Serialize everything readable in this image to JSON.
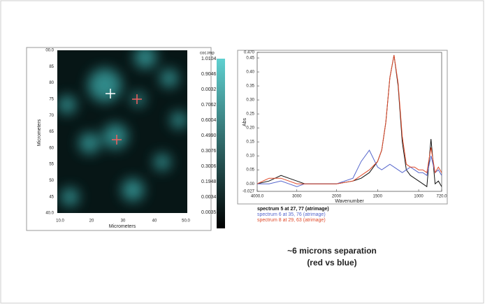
{
  "map": {
    "y_axis_label": "Micrometers",
    "x_axis_label": "Micrometers",
    "x_labels": [
      "10.0",
      "20",
      "30",
      "40",
      "50.0"
    ],
    "y_labels": [
      "00.0",
      "85",
      "80",
      "75",
      "70",
      "65",
      "60",
      "55",
      "50",
      "45",
      "40.0"
    ],
    "colorbar_title": "coc.imp",
    "colorbar_labels": [
      "1.0104",
      "0.9046",
      "0.0032",
      "0.7062",
      "0.6004",
      "0.4990",
      "0.3076",
      "0.3006",
      "0.1948",
      "0.0034",
      "0.0035"
    ]
  },
  "chart_data": {
    "type": "line",
    "x_label": "Wavenumber",
    "y_label": "Abs",
    "x": [
      4000,
      3700,
      3400,
      3200,
      3000,
      2800,
      2500,
      2200,
      2000,
      1800,
      1700,
      1600,
      1500,
      1450,
      1400,
      1350,
      1300,
      1250,
      1200,
      1150,
      1100,
      1050,
      1000,
      950,
      900,
      850,
      800,
      760,
      720
    ],
    "series": [
      {
        "name": "spectrum 5 at 27, 77 (atrimage)",
        "color": "#111111",
        "values": [
          0.0,
          0.01,
          0.03,
          0.02,
          0.01,
          0.0,
          0.0,
          0.0,
          0.0,
          0.01,
          0.02,
          0.04,
          0.08,
          0.12,
          0.22,
          0.38,
          0.46,
          0.35,
          0.15,
          0.05,
          0.03,
          0.02,
          0.01,
          0.0,
          -0.01,
          0.16,
          0.0,
          0.01,
          -0.01
        ]
      },
      {
        "name": "spectrum 6 at 35, 76 (atrimage)",
        "color": "#5566cc",
        "values": [
          0.0,
          0.0,
          0.01,
          0.0,
          -0.01,
          0.0,
          0.0,
          0.0,
          0.0,
          0.02,
          0.08,
          0.12,
          0.06,
          0.05,
          0.06,
          0.07,
          0.06,
          0.05,
          0.04,
          0.05,
          0.06,
          0.05,
          0.04,
          0.04,
          0.03,
          0.1,
          0.04,
          0.05,
          0.03
        ]
      },
      {
        "name": "spectrum 8 at 29, 63 (atrimage)",
        "color": "#e04a2a",
        "values": [
          0.0,
          0.02,
          0.02,
          0.01,
          0.0,
          0.0,
          0.0,
          0.0,
          0.0,
          0.01,
          0.03,
          0.05,
          0.08,
          0.12,
          0.22,
          0.38,
          0.46,
          0.36,
          0.17,
          0.07,
          0.06,
          0.06,
          0.05,
          0.05,
          0.04,
          0.13,
          0.04,
          0.06,
          0.04
        ]
      }
    ],
    "xlim": [
      4000,
      720
    ],
    "xticks": [
      {
        "value": 4000,
        "label": "4000.0"
      },
      3000,
      2000,
      1500,
      1000,
      {
        "value": 720,
        "label": "720.0"
      }
    ],
    "ylim": [
      -0.027,
      0.47
    ],
    "yticks": [
      -0.027,
      {
        "value": 0,
        "label": "0.00"
      },
      0.05,
      {
        "value": 0.1,
        "label": "0.10"
      },
      0.15,
      {
        "value": 0.2,
        "label": "0.20"
      },
      0.25,
      {
        "value": 0.3,
        "label": "0.30"
      },
      0.35,
      {
        "value": 0.4,
        "label": "0.40"
      },
      0.45,
      {
        "value": 0.47,
        "label": "0.470"
      }
    ]
  },
  "caption": {
    "line1": "~6 microns separation",
    "line2": "(red vs blue)"
  }
}
